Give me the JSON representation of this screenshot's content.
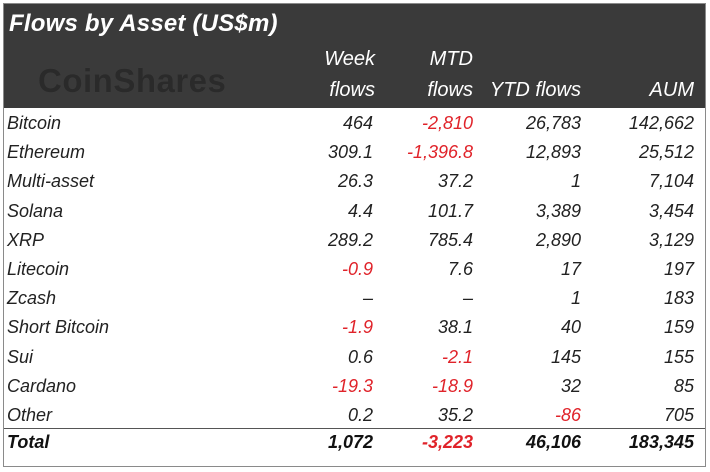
{
  "title": "Flows by Asset (US$m)",
  "logo": "CoinShares",
  "columns": {
    "week_line1": "Week",
    "week_line2": "flows",
    "mtd_line1": "MTD",
    "mtd_line2": "flows",
    "ytd": "YTD flows",
    "aum": "AUM"
  },
  "colors": {
    "header_bg": "#3a3a3a",
    "negative": "#e0232a"
  },
  "rows": [
    {
      "asset": "Bitcoin",
      "week": "464",
      "mtd": "-2,810",
      "ytd": "26,783",
      "aum": "142,662"
    },
    {
      "asset": "Ethereum",
      "week": "309.1",
      "mtd": "-1,396.8",
      "ytd": "12,893",
      "aum": "25,512"
    },
    {
      "asset": "Multi-asset",
      "week": "26.3",
      "mtd": "37.2",
      "ytd": "1",
      "aum": "7,104"
    },
    {
      "asset": "Solana",
      "week": "4.4",
      "mtd": "101.7",
      "ytd": "3,389",
      "aum": "3,454"
    },
    {
      "asset": "XRP",
      "week": "289.2",
      "mtd": "785.4",
      "ytd": "2,890",
      "aum": "3,129"
    },
    {
      "asset": "Litecoin",
      "week": "-0.9",
      "mtd": "7.6",
      "ytd": "17",
      "aum": "197"
    },
    {
      "asset": "Zcash",
      "week": "–",
      "mtd": "–",
      "ytd": "1",
      "aum": "183"
    },
    {
      "asset": "Short Bitcoin",
      "week": "-1.9",
      "mtd": "38.1",
      "ytd": "40",
      "aum": "159"
    },
    {
      "asset": "Sui",
      "week": "0.6",
      "mtd": "-2.1",
      "ytd": "145",
      "aum": "155"
    },
    {
      "asset": "Cardano",
      "week": "-19.3",
      "mtd": "-18.9",
      "ytd": "32",
      "aum": "85"
    },
    {
      "asset": "Other",
      "week": "0.2",
      "mtd": "35.2",
      "ytd": "-86",
      "aum": "705"
    }
  ],
  "total": {
    "asset": "Total",
    "week": "1,072",
    "mtd": "-3,223",
    "ytd": "46,106",
    "aum": "183,345"
  }
}
